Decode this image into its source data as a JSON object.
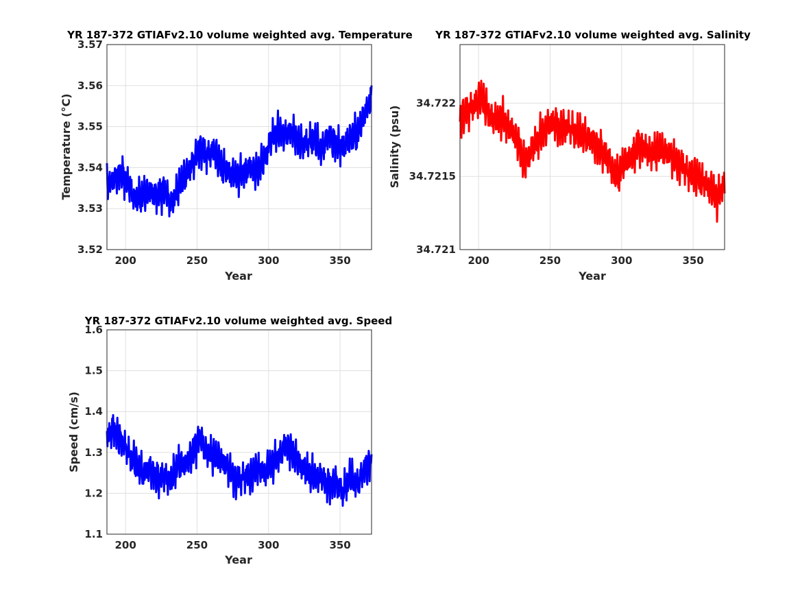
{
  "chart_data": [
    {
      "type": "line",
      "title": "YR 187-372 GTIAFv2.10 volume weighted avg. Temperature",
      "xlabel": "Year",
      "ylabel": "Temperature (°C)",
      "xlim": [
        187,
        372
      ],
      "ylim": [
        3.52,
        3.57
      ],
      "xticks": [
        "200",
        "250",
        "300",
        "350"
      ],
      "yticks": [
        "3.52",
        "3.53",
        "3.54",
        "3.55",
        "3.56",
        "3.57"
      ],
      "grid": true,
      "color": "#0000ff",
      "series": [
        {
          "x": [
            187,
            192,
            197,
            202,
            207,
            212,
            217,
            222,
            227,
            232,
            237,
            242,
            247,
            252,
            257,
            262,
            267,
            272,
            277,
            282,
            287,
            292,
            297,
            302,
            307,
            312,
            317,
            322,
            327,
            332,
            337,
            342,
            347,
            352,
            357,
            362,
            367,
            372
          ],
          "values": [
            3.536,
            3.537,
            3.539,
            3.536,
            3.532,
            3.533,
            3.534,
            3.533,
            3.535,
            3.531,
            3.535,
            3.538,
            3.541,
            3.545,
            3.543,
            3.544,
            3.54,
            3.539,
            3.538,
            3.539,
            3.54,
            3.539,
            3.542,
            3.547,
            3.549,
            3.548,
            3.549,
            3.546,
            3.546,
            3.547,
            3.544,
            3.548,
            3.546,
            3.545,
            3.547,
            3.548,
            3.553,
            3.557
          ]
        }
      ]
    },
    {
      "type": "line",
      "title": "YR 187-372 GTIAFv2.10 volume weighted avg. Salinity",
      "xlabel": "Year",
      "ylabel": "Salinity (psu)",
      "xlim": [
        187,
        372
      ],
      "ylim": [
        34.721,
        34.7224
      ],
      "xticks": [
        "200",
        "250",
        "300",
        "350"
      ],
      "yticks": [
        "34.721",
        "34.7215",
        "34.722"
      ],
      "grid": true,
      "color": "#ff0000",
      "series": [
        {
          "x": [
            187,
            192,
            197,
            202,
            207,
            212,
            217,
            222,
            227,
            232,
            237,
            242,
            247,
            252,
            257,
            262,
            267,
            272,
            277,
            282,
            287,
            292,
            297,
            302,
            307,
            312,
            317,
            322,
            327,
            332,
            337,
            342,
            347,
            352,
            357,
            362,
            367,
            372
          ],
          "values": [
            34.7219,
            34.72195,
            34.72198,
            34.72205,
            34.72192,
            34.72188,
            34.7219,
            34.72183,
            34.72176,
            34.72158,
            34.72168,
            34.72175,
            34.72183,
            34.72188,
            34.72183,
            34.72185,
            34.7218,
            34.72178,
            34.72176,
            34.72172,
            34.72168,
            34.72158,
            34.72148,
            34.7216,
            34.72163,
            34.72173,
            34.72168,
            34.72165,
            34.72168,
            34.72166,
            34.72162,
            34.72158,
            34.72152,
            34.7215,
            34.72146,
            34.72142,
            34.72135,
            34.72146
          ]
        }
      ]
    },
    {
      "type": "line",
      "title": "YR 187-372 GTIAFv2.10 volume weighted avg. Speed",
      "xlabel": "Year",
      "ylabel": "Speed (cm/s)",
      "xlim": [
        187,
        372
      ],
      "ylim": [
        1.1,
        1.6
      ],
      "xticks": [
        "200",
        "250",
        "300",
        "350"
      ],
      "yticks": [
        "1.1",
        "1.2",
        "1.3",
        "1.4",
        "1.5",
        "1.6"
      ],
      "grid": true,
      "color": "#0000ff",
      "series": [
        {
          "x": [
            187,
            192,
            197,
            202,
            207,
            212,
            217,
            222,
            227,
            232,
            237,
            242,
            247,
            252,
            257,
            262,
            267,
            272,
            277,
            282,
            287,
            292,
            297,
            302,
            307,
            312,
            317,
            322,
            327,
            332,
            337,
            342,
            347,
            352,
            357,
            362,
            367,
            372
          ],
          "values": [
            1.34,
            1.36,
            1.33,
            1.3,
            1.27,
            1.25,
            1.26,
            1.24,
            1.24,
            1.23,
            1.27,
            1.27,
            1.3,
            1.34,
            1.3,
            1.29,
            1.28,
            1.26,
            1.23,
            1.24,
            1.24,
            1.26,
            1.25,
            1.27,
            1.29,
            1.32,
            1.3,
            1.27,
            1.25,
            1.24,
            1.24,
            1.22,
            1.23,
            1.2,
            1.24,
            1.22,
            1.26,
            1.28
          ]
        }
      ]
    }
  ]
}
